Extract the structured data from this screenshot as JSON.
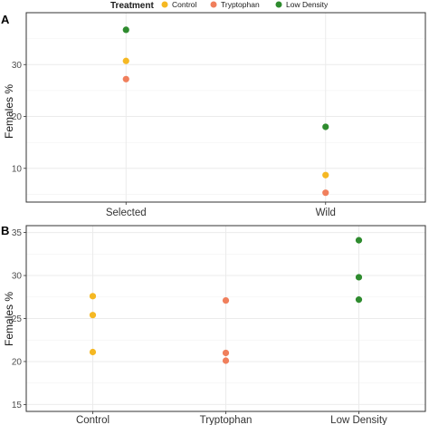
{
  "legend": {
    "title": "Treatment",
    "items": [
      {
        "label": "Control",
        "color": "#F5B823"
      },
      {
        "label": "Tryptophan",
        "color": "#F07F5C"
      },
      {
        "label": "Low Density",
        "color": "#2E8B2E"
      }
    ],
    "placement": "top"
  },
  "chart_data": [
    {
      "panel": "A",
      "type": "scatter",
      "xlabel": "",
      "ylabel": "Females %",
      "categories": [
        "Selected",
        "Wild"
      ],
      "ylim": [
        3.5,
        40
      ],
      "yticks": [
        10,
        20,
        30
      ],
      "grid": true,
      "series": [
        {
          "name": "Control",
          "values": [
            30.7,
            8.7
          ]
        },
        {
          "name": "Tryptophan",
          "values": [
            27.2,
            5.3
          ]
        },
        {
          "name": "Low Density",
          "values": [
            36.7,
            18.0
          ]
        }
      ]
    },
    {
      "panel": "B",
      "type": "scatter",
      "xlabel": "",
      "ylabel": "Females %",
      "categories": [
        "Control",
        "Tryptophan",
        "Low Density"
      ],
      "ylim": [
        14.2,
        35.8
      ],
      "yticks": [
        15,
        20,
        25,
        30,
        35
      ],
      "grid": true,
      "series": [
        {
          "name": "Control",
          "points": [
            {
              "x": "Control",
              "values": [
                27.6,
                25.4,
                21.1
              ]
            }
          ]
        },
        {
          "name": "Tryptophan",
          "points": [
            {
              "x": "Tryptophan",
              "values": [
                27.1,
                21.0,
                20.1
              ]
            }
          ]
        },
        {
          "name": "Low Density",
          "points": [
            {
              "x": "Low Density",
              "values": [
                34.1,
                29.8,
                27.2
              ]
            }
          ]
        }
      ]
    }
  ]
}
